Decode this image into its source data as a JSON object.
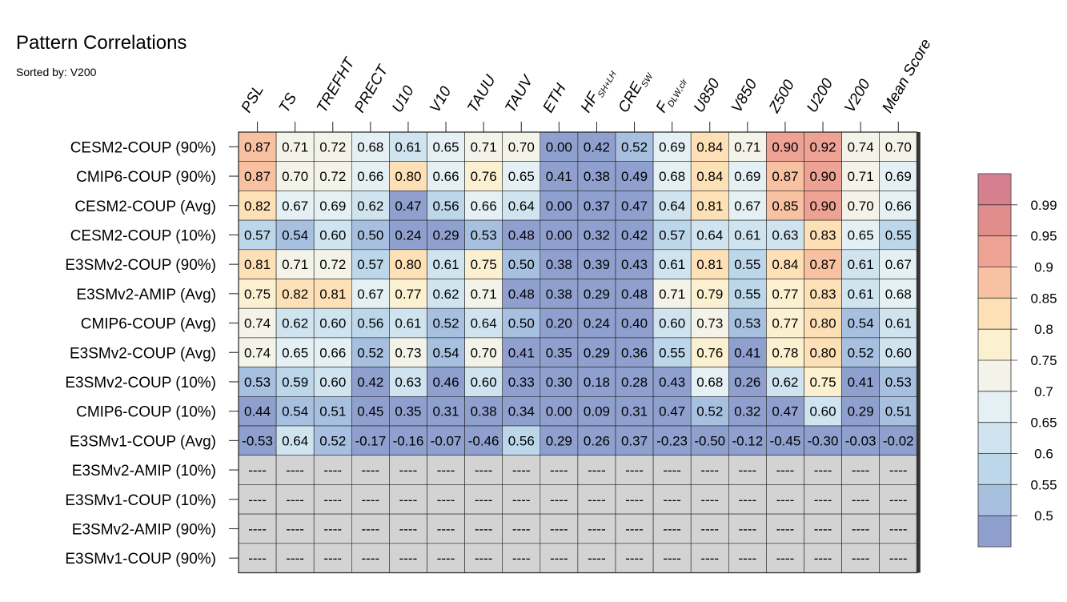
{
  "chart_data": {
    "type": "heatmap",
    "title": "Pattern Correlations",
    "subtitle": "Sorted by: V200",
    "columns": [
      {
        "main": "PSL"
      },
      {
        "main": "TS"
      },
      {
        "main": "TREFHT"
      },
      {
        "main": "PRECT"
      },
      {
        "main": "U10"
      },
      {
        "main": "V10"
      },
      {
        "main": "TAUU"
      },
      {
        "main": "TAUV"
      },
      {
        "main": "ETH"
      },
      {
        "main": "HF",
        "sub": "SH+LH"
      },
      {
        "main": "CRE",
        "sub": "SW"
      },
      {
        "main": "F",
        "sub": "DLW,clr"
      },
      {
        "main": "U850"
      },
      {
        "main": "V850"
      },
      {
        "main": "Z500"
      },
      {
        "main": "U200"
      },
      {
        "main": "V200"
      },
      {
        "main": "Mean Score"
      }
    ],
    "rows": [
      "CESM2-COUP (90%)",
      "CMIP6-COUP (90%)",
      "CESM2-COUP (Avg)",
      "CESM2-COUP (10%)",
      "E3SMv2-COUP (90%)",
      "E3SMv2-AMIP (Avg)",
      "CMIP6-COUP (Avg)",
      "E3SMv2-COUP (Avg)",
      "E3SMv2-COUP (10%)",
      "CMIP6-COUP (10%)",
      "E3SMv1-COUP (Avg)",
      "E3SMv2-AMIP (10%)",
      "E3SMv1-COUP (10%)",
      "E3SMv2-AMIP (90%)",
      "E3SMv1-COUP (90%)"
    ],
    "values": [
      [
        "0.87",
        "0.71",
        "0.72",
        "0.68",
        "0.61",
        "0.65",
        "0.71",
        "0.70",
        "0.00",
        "0.42",
        "0.52",
        "0.69",
        "0.84",
        "0.71",
        "0.90",
        "0.92",
        "0.74",
        "0.70"
      ],
      [
        "0.87",
        "0.70",
        "0.72",
        "0.66",
        "0.80",
        "0.66",
        "0.76",
        "0.65",
        "0.41",
        "0.38",
        "0.49",
        "0.68",
        "0.84",
        "0.69",
        "0.87",
        "0.90",
        "0.71",
        "0.69"
      ],
      [
        "0.82",
        "0.67",
        "0.69",
        "0.62",
        "0.47",
        "0.56",
        "0.66",
        "0.64",
        "0.00",
        "0.37",
        "0.47",
        "0.64",
        "0.81",
        "0.67",
        "0.85",
        "0.90",
        "0.70",
        "0.66"
      ],
      [
        "0.57",
        "0.54",
        "0.60",
        "0.50",
        "0.24",
        "0.29",
        "0.53",
        "0.48",
        "0.00",
        "0.32",
        "0.42",
        "0.57",
        "0.64",
        "0.61",
        "0.63",
        "0.83",
        "0.65",
        "0.55"
      ],
      [
        "0.81",
        "0.71",
        "0.72",
        "0.57",
        "0.80",
        "0.61",
        "0.75",
        "0.50",
        "0.38",
        "0.39",
        "0.43",
        "0.61",
        "0.81",
        "0.55",
        "0.84",
        "0.87",
        "0.61",
        "0.67"
      ],
      [
        "0.75",
        "0.82",
        "0.81",
        "0.67",
        "0.77",
        "0.62",
        "0.71",
        "0.48",
        "0.38",
        "0.29",
        "0.48",
        "0.71",
        "0.79",
        "0.55",
        "0.77",
        "0.83",
        "0.61",
        "0.68"
      ],
      [
        "0.74",
        "0.62",
        "0.60",
        "0.56",
        "0.61",
        "0.52",
        "0.64",
        "0.50",
        "0.20",
        "0.24",
        "0.40",
        "0.60",
        "0.73",
        "0.53",
        "0.77",
        "0.80",
        "0.54",
        "0.61"
      ],
      [
        "0.74",
        "0.65",
        "0.66",
        "0.52",
        "0.73",
        "0.54",
        "0.70",
        "0.41",
        "0.35",
        "0.29",
        "0.36",
        "0.55",
        "0.76",
        "0.41",
        "0.78",
        "0.80",
        "0.52",
        "0.60"
      ],
      [
        "0.53",
        "0.59",
        "0.60",
        "0.42",
        "0.63",
        "0.46",
        "0.60",
        "0.33",
        "0.30",
        "0.18",
        "0.28",
        "0.43",
        "0.68",
        "0.26",
        "0.62",
        "0.75",
        "0.41",
        "0.53"
      ],
      [
        "0.44",
        "0.54",
        "0.51",
        "0.45",
        "0.35",
        "0.31",
        "0.38",
        "0.34",
        "0.00",
        "0.09",
        "0.31",
        "0.47",
        "0.52",
        "0.32",
        "0.47",
        "0.60",
        "0.29",
        "0.51"
      ],
      [
        "-0.53",
        "0.64",
        "0.52",
        "-0.17",
        "-0.16",
        "-0.07",
        "-0.46",
        "0.56",
        "0.29",
        "0.26",
        "0.37",
        "-0.23",
        "-0.50",
        "-0.12",
        "-0.45",
        "-0.30",
        "-0.03",
        "-0.02"
      ],
      [
        "----",
        "----",
        "----",
        "----",
        "----",
        "----",
        "----",
        "----",
        "----",
        "----",
        "----",
        "----",
        "----",
        "----",
        "----",
        "----",
        "----",
        "----"
      ],
      [
        "----",
        "----",
        "----",
        "----",
        "----",
        "----",
        "----",
        "----",
        "----",
        "----",
        "----",
        "----",
        "----",
        "----",
        "----",
        "----",
        "----",
        "----"
      ],
      [
        "----",
        "----",
        "----",
        "----",
        "----",
        "----",
        "----",
        "----",
        "----",
        "----",
        "----",
        "----",
        "----",
        "----",
        "----",
        "----",
        "----",
        "----"
      ],
      [
        "----",
        "----",
        "----",
        "----",
        "----",
        "----",
        "----",
        "----",
        "----",
        "----",
        "----",
        "----",
        "----",
        "----",
        "----",
        "----",
        "----",
        "----"
      ]
    ],
    "colorbar": {
      "ticks": [
        "0.99",
        "0.95",
        "0.9",
        "0.85",
        "0.8",
        "0.75",
        "0.7",
        "0.65",
        "0.6",
        "0.55",
        "0.5"
      ],
      "levels": [
        0.5,
        0.55,
        0.6,
        0.65,
        0.7,
        0.75,
        0.8,
        0.85,
        0.9,
        0.95,
        0.99
      ],
      "colors": [
        "#8fa0cf",
        "#a8c0e0",
        "#bcd6ea",
        "#d0e4ef",
        "#e4f0f4",
        "#f3f3ea",
        "#fbf0d0",
        "#fde0b6",
        "#f8c2a2",
        "#eea294",
        "#e28c8c",
        "#d67f8f"
      ]
    },
    "missing_color": "#d3d3d3"
  }
}
